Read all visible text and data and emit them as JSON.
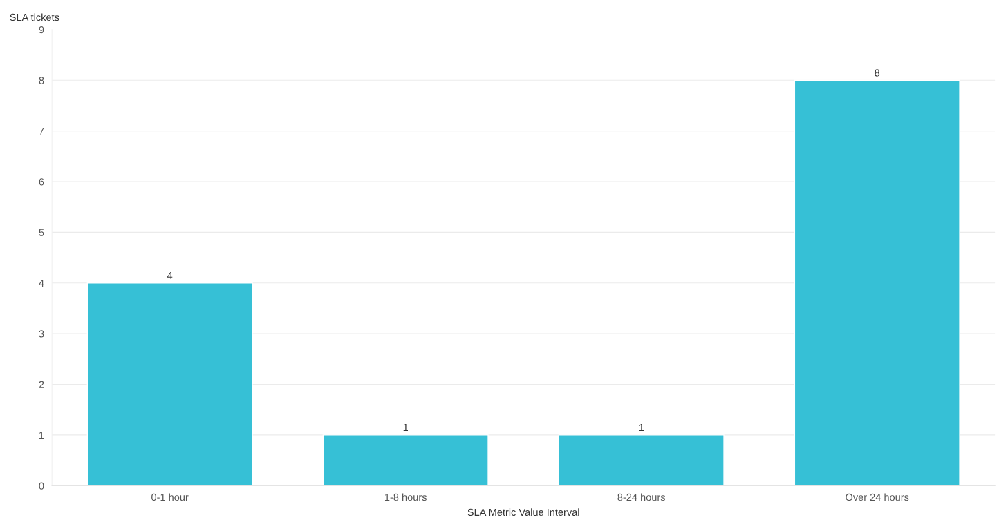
{
  "chart_data": {
    "type": "bar",
    "ylabel": "SLA tickets",
    "xlabel": "SLA Metric Value Interval",
    "categories": [
      "0-1 hour",
      "1-8 hours",
      "8-24 hours",
      "Over 24 hours"
    ],
    "values": [
      4,
      1,
      1,
      8
    ],
    "color": "#36c0d6",
    "ylim": [
      0,
      9
    ],
    "yticks": [
      0,
      1,
      2,
      3,
      4,
      5,
      6,
      7,
      8,
      9
    ],
    "grid": "y",
    "data_labels": true
  }
}
